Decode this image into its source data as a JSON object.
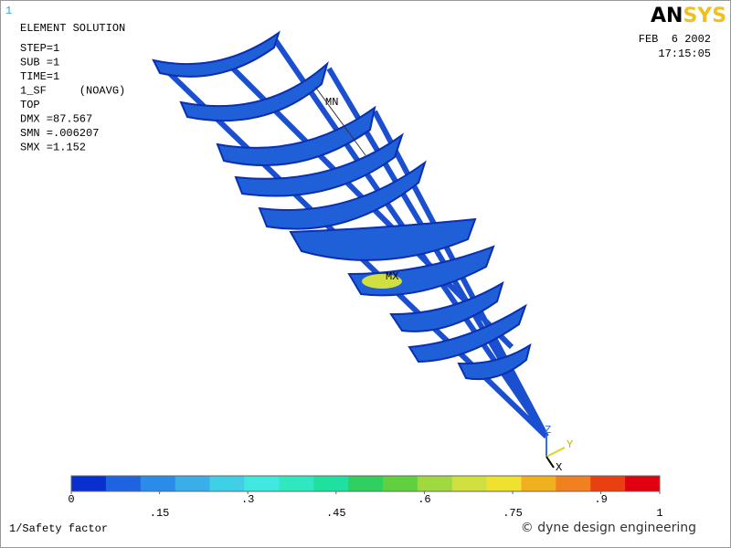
{
  "window_number": "1",
  "header": {
    "title": "ELEMENT SOLUTION",
    "lines": [
      "STEP=1",
      "SUB =1",
      "TIME=1",
      "1_SF     (NOAVG)",
      "TOP",
      "DMX =87.567",
      "SMN =.006207",
      "SMX =1.152"
    ]
  },
  "logo": {
    "dark": "AN",
    "light": "SYS"
  },
  "date": "FEB  6 2002",
  "time": "17:15:05",
  "annotations": {
    "min": "MN",
    "max": "MX"
  },
  "triad": {
    "x": "X",
    "y": "Y",
    "z": "Z"
  },
  "legend": {
    "range": [
      0,
      1
    ],
    "colors": [
      "#0a2fd0",
      "#1e64e0",
      "#2a8be8",
      "#3aaee8",
      "#3fd0e8",
      "#40e8e0",
      "#30e8c0",
      "#20e0a0",
      "#30d060",
      "#60d040",
      "#a0d840",
      "#d0e040",
      "#f0e030",
      "#f0b020",
      "#f08020",
      "#e84010",
      "#e00010"
    ],
    "ticks": [
      0,
      {
        "value": 0.15,
        "label": ".15"
      },
      {
        "value": 0.3,
        "label": ".3"
      },
      {
        "value": 0.45,
        "label": ".45"
      },
      {
        "value": 0.6,
        "label": ".6"
      },
      {
        "value": 0.75,
        "label": ".75"
      },
      {
        "value": 0.9,
        "label": ".9"
      },
      1
    ],
    "title": "1/Safety factor"
  },
  "copyright": "© dyne design engineering"
}
